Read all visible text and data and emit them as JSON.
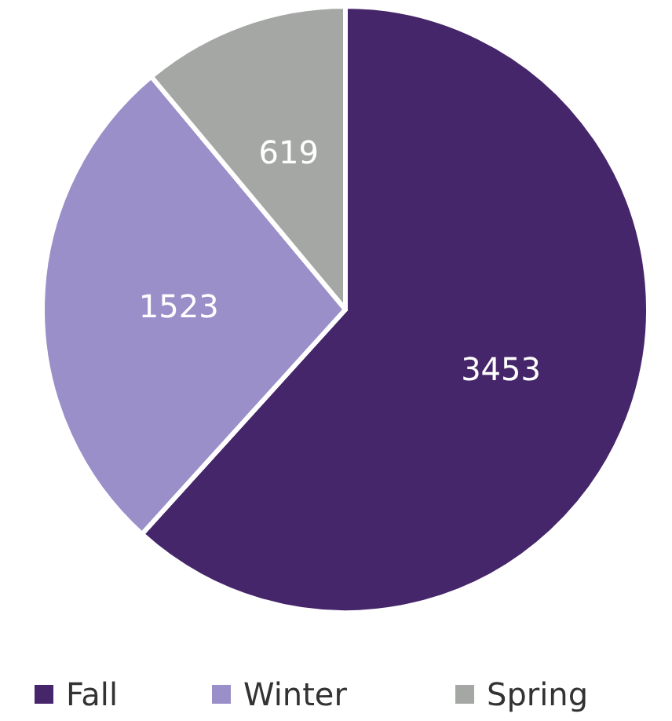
{
  "chart_data": {
    "type": "pie",
    "categories": [
      "Fall",
      "Winter",
      "Spring"
    ],
    "values": [
      3453,
      1523,
      619
    ],
    "colors": [
      "#46266a",
      "#9a8fc8",
      "#a5a7a5"
    ],
    "data_labels": true,
    "legend": "bottom"
  }
}
